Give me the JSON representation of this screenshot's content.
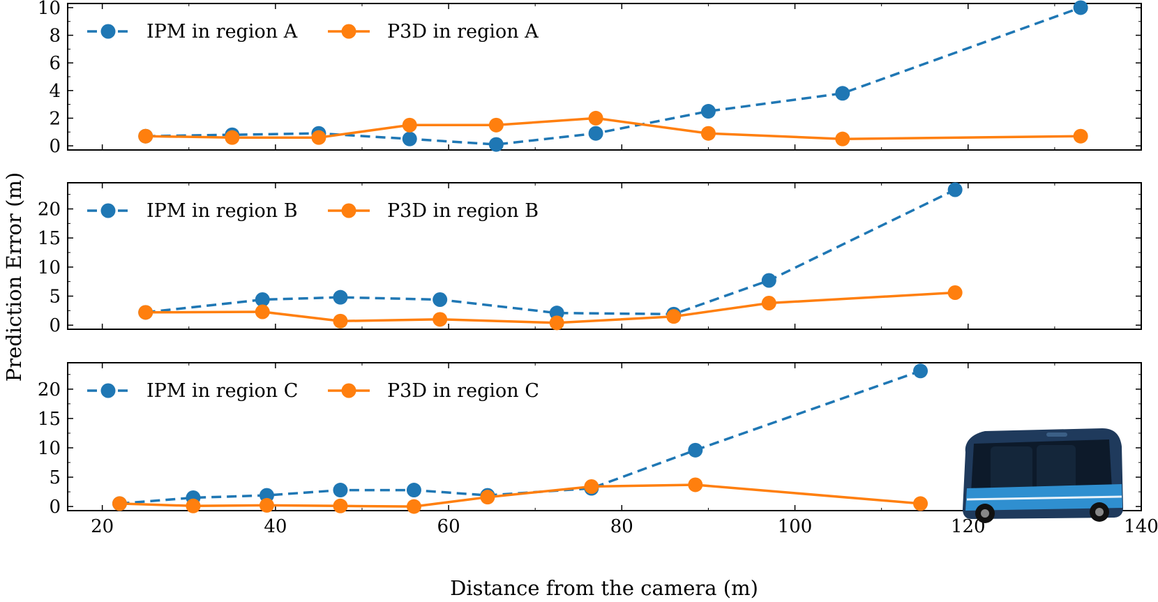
{
  "figure": {
    "xlabel": "Distance from the camera (m)",
    "ylabel": "Prediction Error (m)",
    "x_ticks": [
      "20",
      "40",
      "60",
      "80",
      "100",
      "120",
      "140"
    ]
  },
  "colors": {
    "ipm": "#1f77b4",
    "p3d": "#ff7f0e",
    "axes": "#000000",
    "vehicle_body": "#1f3a5c",
    "vehicle_accent": "#2f8fd0"
  },
  "icons": {
    "vehicle": "autonomous-shuttle-bus-image"
  },
  "chart_data": [
    {
      "type": "line",
      "xlim": [
        16,
        140
      ],
      "ylim": [
        -0.3,
        10.3
      ],
      "y_ticks": [
        "0",
        "2",
        "4",
        "6",
        "8",
        "10"
      ],
      "legend_placement": "top-left",
      "grid": false,
      "series": [
        {
          "name": "IPM in region A",
          "style": "dashed",
          "x": [
            25,
            35,
            45,
            55.5,
            65.5,
            77,
            90,
            105.5,
            133
          ],
          "y": [
            0.7,
            0.8,
            0.9,
            0.5,
            0.1,
            0.9,
            2.5,
            3.8,
            10.0
          ]
        },
        {
          "name": "P3D in region A",
          "style": "solid",
          "x": [
            25,
            35,
            45,
            55.5,
            65.5,
            77,
            90,
            105.5,
            133
          ],
          "y": [
            0.7,
            0.6,
            0.6,
            1.5,
            1.5,
            2.0,
            0.9,
            0.5,
            0.7
          ]
        }
      ]
    },
    {
      "type": "line",
      "xlim": [
        16,
        140
      ],
      "ylim": [
        -0.7,
        24.5
      ],
      "y_ticks": [
        "0",
        "5",
        "10",
        "15",
        "20"
      ],
      "legend_placement": "top-left",
      "grid": false,
      "series": [
        {
          "name": "IPM in region B",
          "style": "dashed",
          "x": [
            25,
            38.5,
            47.5,
            59,
            72.5,
            86,
            97,
            118.5
          ],
          "y": [
            2.2,
            4.4,
            4.8,
            4.4,
            2.1,
            1.9,
            7.7,
            23.3
          ]
        },
        {
          "name": "P3D in region B",
          "style": "solid",
          "x": [
            25,
            38.5,
            47.5,
            59,
            72.5,
            86,
            97,
            118.5
          ],
          "y": [
            2.2,
            2.3,
            0.7,
            1.0,
            0.4,
            1.5,
            3.8,
            5.6
          ]
        }
      ]
    },
    {
      "type": "line",
      "xlim": [
        16,
        140
      ],
      "ylim": [
        -0.7,
        24.5
      ],
      "y_ticks": [
        "0",
        "5",
        "10",
        "15",
        "20"
      ],
      "legend_placement": "top-left",
      "grid": false,
      "series": [
        {
          "name": "IPM in region C",
          "style": "dashed",
          "x": [
            22,
            30.5,
            39,
            47.5,
            56,
            64.5,
            76.5,
            88.5,
            114.5
          ],
          "y": [
            0.5,
            1.5,
            1.9,
            2.8,
            2.8,
            1.9,
            3.1,
            9.6,
            23.1
          ]
        },
        {
          "name": "P3D in region C",
          "style": "solid",
          "x": [
            22,
            30.5,
            39,
            47.5,
            56,
            64.5,
            76.5,
            88.5,
            114.5
          ],
          "y": [
            0.5,
            0.1,
            0.2,
            0.1,
            0.0,
            1.6,
            3.4,
            3.7,
            0.5
          ]
        }
      ]
    }
  ]
}
